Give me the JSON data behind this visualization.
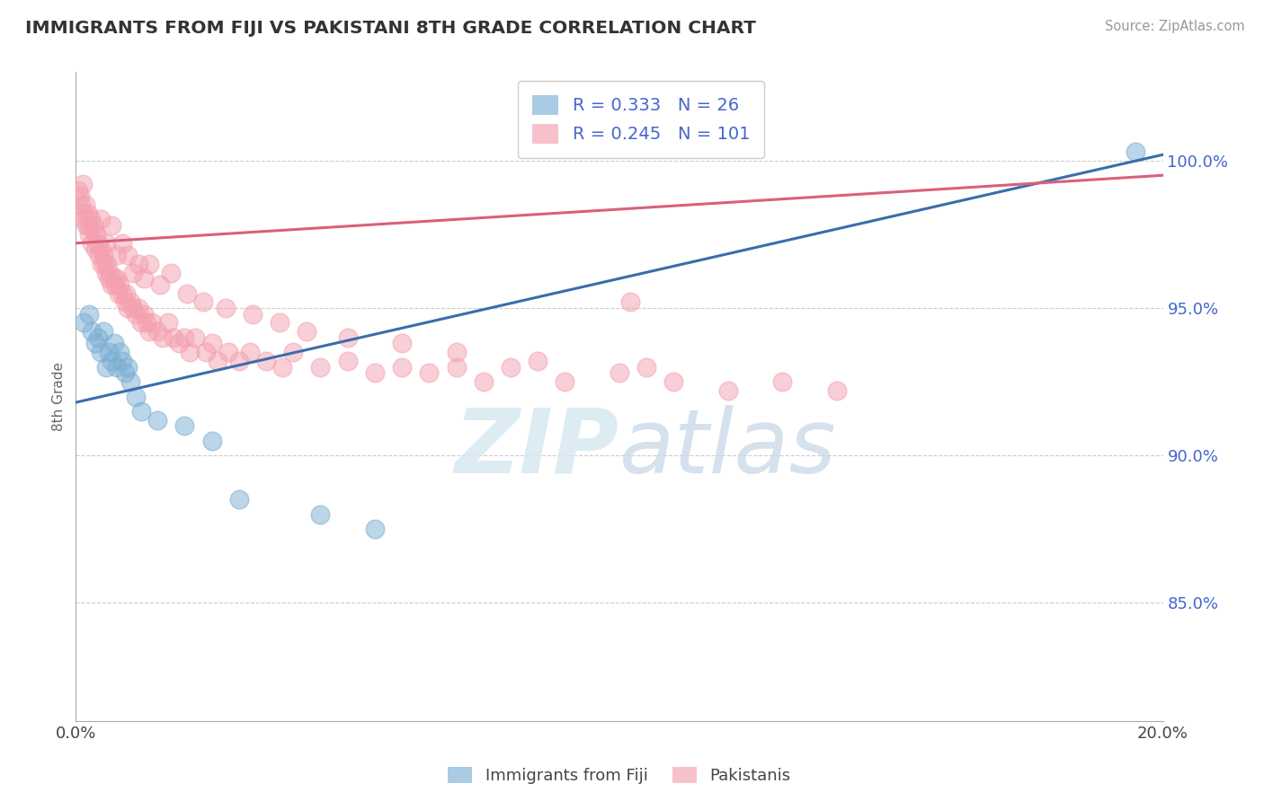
{
  "title": "IMMIGRANTS FROM FIJI VS PAKISTANI 8TH GRADE CORRELATION CHART",
  "source": "Source: ZipAtlas.com",
  "ylabel": "8th Grade",
  "xlim": [
    0.0,
    20.0
  ],
  "ylim": [
    81.0,
    103.0
  ],
  "fiji_R": 0.333,
  "fiji_N": 26,
  "pakistani_R": 0.245,
  "pakistani_N": 101,
  "fiji_color": "#7BAFD4",
  "pakistani_color": "#F4A0B0",
  "fiji_line_color": "#3A6DAA",
  "pakistani_line_color": "#D9607A",
  "fiji_label": "Immigrants from Fiji",
  "pakistani_label": "Pakistanis",
  "watermark": "ZIPatlas",
  "background_color": "#ffffff",
  "fiji_trend_x0": 0.0,
  "fiji_trend_y0": 91.8,
  "fiji_trend_x1": 20.0,
  "fiji_trend_y1": 100.2,
  "pak_trend_x0": 0.0,
  "pak_trend_y0": 97.2,
  "pak_trend_x1": 20.0,
  "pak_trend_y1": 99.5,
  "fiji_scatter_x": [
    0.15,
    0.25,
    0.3,
    0.35,
    0.4,
    0.45,
    0.5,
    0.55,
    0.6,
    0.65,
    0.7,
    0.75,
    0.8,
    0.85,
    0.9,
    0.95,
    1.0,
    1.1,
    1.2,
    1.5,
    2.0,
    2.5,
    3.0,
    4.5,
    5.5,
    19.5
  ],
  "fiji_scatter_y": [
    94.5,
    94.8,
    94.2,
    93.8,
    94.0,
    93.5,
    94.2,
    93.0,
    93.5,
    93.2,
    93.8,
    93.0,
    93.5,
    93.2,
    92.8,
    93.0,
    92.5,
    92.0,
    91.5,
    91.2,
    91.0,
    90.5,
    88.5,
    88.0,
    87.5,
    100.3
  ],
  "pak_scatter_x": [
    0.05,
    0.08,
    0.1,
    0.12,
    0.15,
    0.18,
    0.2,
    0.22,
    0.25,
    0.28,
    0.3,
    0.32,
    0.35,
    0.38,
    0.4,
    0.42,
    0.45,
    0.48,
    0.5,
    0.52,
    0.55,
    0.58,
    0.6,
    0.62,
    0.65,
    0.7,
    0.72,
    0.75,
    0.78,
    0.8,
    0.85,
    0.9,
    0.92,
    0.95,
    1.0,
    1.05,
    1.1,
    1.15,
    1.2,
    1.25,
    1.3,
    1.35,
    1.4,
    1.5,
    1.6,
    1.7,
    1.8,
    1.9,
    2.0,
    2.1,
    2.2,
    2.4,
    2.5,
    2.6,
    2.8,
    3.0,
    3.2,
    3.5,
    3.8,
    4.0,
    4.5,
    5.0,
    5.5,
    6.0,
    6.5,
    7.0,
    7.5,
    8.0,
    9.0,
    10.0,
    11.0,
    12.0,
    13.0,
    14.0,
    0.15,
    0.25,
    0.35,
    0.45,
    0.55,
    0.65,
    0.75,
    0.85,
    0.95,
    1.05,
    1.15,
    1.25,
    1.35,
    1.55,
    1.75,
    2.05,
    2.35,
    2.75,
    3.25,
    3.75,
    4.25,
    5.0,
    6.0,
    7.0,
    8.5,
    10.5,
    10.2
  ],
  "pak_scatter_y": [
    99.0,
    98.8,
    98.5,
    99.2,
    98.0,
    98.5,
    97.8,
    98.2,
    97.5,
    98.0,
    97.2,
    97.8,
    97.0,
    97.5,
    97.2,
    96.8,
    97.0,
    96.5,
    96.8,
    96.5,
    96.2,
    96.5,
    96.0,
    96.2,
    95.8,
    96.0,
    95.8,
    96.0,
    95.5,
    95.8,
    95.5,
    95.2,
    95.5,
    95.0,
    95.2,
    95.0,
    94.8,
    95.0,
    94.5,
    94.8,
    94.5,
    94.2,
    94.5,
    94.2,
    94.0,
    94.5,
    94.0,
    93.8,
    94.0,
    93.5,
    94.0,
    93.5,
    93.8,
    93.2,
    93.5,
    93.2,
    93.5,
    93.2,
    93.0,
    93.5,
    93.0,
    93.2,
    92.8,
    93.0,
    92.8,
    93.0,
    92.5,
    93.0,
    92.5,
    92.8,
    92.5,
    92.2,
    92.5,
    92.2,
    98.2,
    97.8,
    97.5,
    98.0,
    97.2,
    97.8,
    96.8,
    97.2,
    96.8,
    96.2,
    96.5,
    96.0,
    96.5,
    95.8,
    96.2,
    95.5,
    95.2,
    95.0,
    94.8,
    94.5,
    94.2,
    94.0,
    93.8,
    93.5,
    93.2,
    93.0,
    95.2
  ]
}
